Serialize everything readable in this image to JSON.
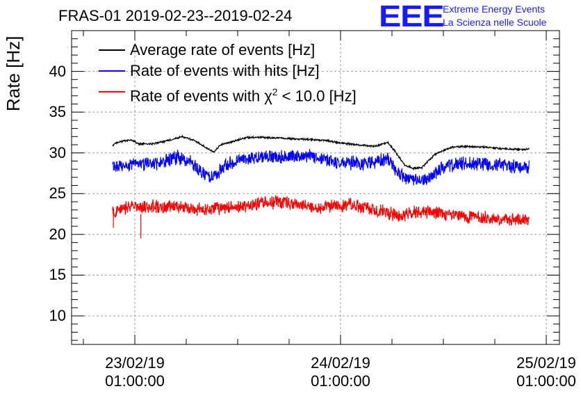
{
  "header": {
    "title": "FRAS-01 2019-02-23--2019-02-24",
    "logo_mark": "EEE",
    "logo_line1": "Extreme Energy Events",
    "logo_line2": "La Scienza nelle Scuole"
  },
  "chart_data": {
    "type": "line",
    "title": "FRAS-01 2019-02-23--2019-02-24",
    "xlabel": "",
    "ylabel": "Rate [Hz]",
    "ylim": [
      6.5,
      45
    ],
    "y_ticks": [
      "10",
      "15",
      "20",
      "25",
      "30",
      "35",
      "40"
    ],
    "xlim_hours": [
      -6.2,
      48.0
    ],
    "x_ticks": [
      {
        "hour": 0,
        "date": "23/02/19",
        "time": "01:00:00"
      },
      {
        "hour": 24,
        "date": "24/02/19",
        "time": "01:00:00"
      },
      {
        "hour": 48,
        "date": "25/02/19",
        "time": "01:00:00"
      }
    ],
    "grid": true,
    "legend_position": "top-left",
    "series": [
      {
        "name": "Average rate of events [Hz]",
        "legend_label": "Average rate of events [Hz]",
        "color": "#000000",
        "noise": 0.1,
        "hours": [
          -2.6,
          -2.0,
          -0.5,
          0.5,
          2.0,
          3.5,
          5.5,
          7.0,
          8.5,
          9.2,
          10.0,
          11.5,
          13.0,
          15.0,
          17.0,
          19.0,
          21.0,
          22.5,
          24.0,
          26.0,
          28.0,
          29.5,
          30.5,
          31.5,
          32.5,
          33.5,
          35.0,
          36.0,
          37.0,
          39.0,
          41.0,
          43.0,
          45.0,
          46.0
        ],
        "values": [
          30.9,
          31.3,
          31.6,
          31.1,
          31.1,
          31.4,
          32.0,
          31.5,
          30.5,
          30.1,
          31.0,
          31.4,
          31.9,
          31.9,
          31.8,
          31.7,
          31.6,
          31.5,
          31.2,
          31.0,
          30.8,
          31.3,
          30.0,
          28.5,
          28.1,
          28.2,
          29.8,
          30.3,
          30.7,
          30.8,
          30.7,
          30.5,
          30.4,
          30.5
        ]
      },
      {
        "name": "Rate of events with hits [Hz]",
        "legend_label": "Rate of events with hits [Hz]",
        "color": "#0000ff",
        "noise": 0.75,
        "hours": [
          -2.6,
          -1.0,
          1.0,
          3.0,
          5.0,
          6.5,
          8.0,
          8.8,
          9.5,
          10.5,
          12.0,
          14.0,
          16.0,
          18.0,
          20.0,
          22.0,
          24.0,
          26.0,
          28.0,
          29.5,
          30.5,
          31.5,
          32.5,
          33.5,
          34.5,
          35.5,
          37.0,
          39.0,
          41.0,
          43.0,
          45.0,
          46.0
        ],
        "values": [
          28.3,
          28.6,
          28.6,
          28.8,
          29.5,
          28.8,
          27.3,
          27.0,
          27.2,
          28.5,
          29.2,
          29.4,
          29.6,
          29.5,
          29.6,
          29.3,
          28.8,
          28.7,
          28.8,
          29.3,
          27.8,
          27.0,
          26.5,
          26.6,
          27.0,
          28.0,
          28.5,
          28.7,
          28.7,
          28.5,
          28.3,
          28.3
        ]
      },
      {
        "name": "Rate of events with χ² < 10.0 [Hz]",
        "legend_label": "Rate of events with χ",
        "legend_sup": "2",
        "legend_tail": " < 10.0 [Hz]",
        "color": "#ff0000",
        "noise": 0.7,
        "hours": [
          -2.6,
          -1.0,
          2.0,
          5.0,
          8.0,
          10.0,
          13.0,
          15.0,
          17.0,
          19.0,
          21.0,
          23.0,
          25.0,
          27.0,
          29.0,
          31.0,
          32.0,
          33.0,
          35.0,
          37.0,
          39.0,
          41.0,
          43.0,
          45.0,
          46.0
        ],
        "values": [
          22.7,
          23.3,
          23.4,
          23.4,
          23.0,
          23.2,
          23.5,
          23.9,
          24.0,
          23.6,
          23.2,
          23.5,
          23.7,
          23.2,
          22.8,
          22.2,
          22.6,
          22.9,
          22.7,
          22.3,
          22.2,
          22.0,
          21.8,
          21.7,
          21.8
        ]
      }
    ],
    "spikes": [
      {
        "series": 2,
        "hour": 0.7,
        "value": 19.5
      },
      {
        "series": 2,
        "hour": -2.5,
        "value": 20.8
      }
    ]
  }
}
